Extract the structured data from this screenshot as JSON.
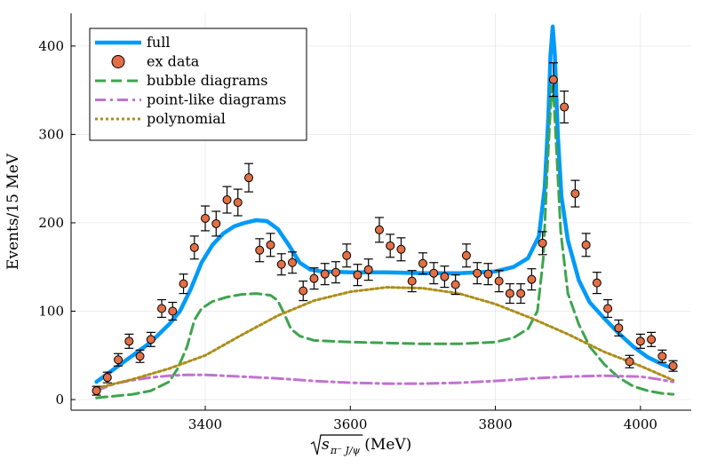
{
  "chart_data": {
    "type": "line",
    "title": "",
    "xlabel": "√s_{π⁻J/ψ}(MeV)",
    "xlabel_base": "s",
    "xlabel_sub": "π⁻ J/ψ",
    "xlabel_unit": "(MeV)",
    "ylabel": "Events/15 MeV",
    "xlim": [
      3215,
      4070
    ],
    "ylim": [
      -12,
      437
    ],
    "xticks": [
      3400,
      3600,
      3800,
      4000
    ],
    "yticks": [
      0,
      100,
      200,
      300,
      400
    ],
    "grid": true,
    "legend_position": "top-left",
    "series": [
      {
        "name": "full",
        "style": "solid",
        "color": "#009AF9",
        "x": [
          3250,
          3275,
          3300,
          3325,
          3350,
          3365,
          3380,
          3395,
          3410,
          3425,
          3440,
          3455,
          3470,
          3485,
          3500,
          3515,
          3530,
          3545,
          3560,
          3600,
          3650,
          3700,
          3750,
          3800,
          3825,
          3845,
          3860,
          3868,
          3873,
          3876,
          3879,
          3882,
          3886,
          3891,
          3900,
          3915,
          3930,
          3950,
          3970,
          3990,
          4010,
          4030,
          4045
        ],
        "y": [
          20,
          35,
          50,
          65,
          85,
          100,
          125,
          155,
          175,
          188,
          196,
          200,
          203,
          202,
          193,
          175,
          155,
          147,
          145,
          144,
          144,
          143,
          143,
          145,
          150,
          160,
          185,
          240,
          320,
          390,
          422,
          390,
          300,
          230,
          180,
          135,
          110,
          92,
          75,
          60,
          48,
          40,
          35
        ]
      },
      {
        "name": "bubble diagrams",
        "style": "dashed",
        "color": "#3DA44D",
        "x": [
          3250,
          3275,
          3300,
          3325,
          3350,
          3362,
          3375,
          3385,
          3395,
          3410,
          3430,
          3450,
          3470,
          3490,
          3500,
          3510,
          3518,
          3530,
          3550,
          3600,
          3650,
          3700,
          3750,
          3800,
          3825,
          3845,
          3858,
          3866,
          3871,
          3875,
          3878,
          3881,
          3885,
          3890,
          3900,
          3915,
          3930,
          3950,
          3970,
          3990,
          4010,
          4030,
          4045
        ],
        "y": [
          2,
          4,
          6,
          10,
          20,
          35,
          60,
          90,
          103,
          111,
          116,
          119,
          120,
          118,
          112,
          95,
          80,
          72,
          67,
          65,
          64,
          63,
          63,
          65,
          70,
          80,
          100,
          160,
          250,
          315,
          355,
          335,
          270,
          190,
          120,
          85,
          60,
          40,
          25,
          15,
          10,
          7,
          6
        ]
      },
      {
        "name": "point-like diagrams",
        "style": "dashdot",
        "color": "#C271D2",
        "x": [
          3250,
          3275,
          3300,
          3325,
          3350,
          3375,
          3400,
          3450,
          3500,
          3550,
          3600,
          3650,
          3700,
          3750,
          3800,
          3850,
          3900,
          3950,
          4000,
          4025,
          4045
        ],
        "y": [
          10,
          18,
          22,
          25,
          27,
          28,
          28,
          26,
          24,
          21,
          19,
          18,
          18,
          19,
          21,
          24,
          26,
          27,
          26,
          23,
          20
        ]
      },
      {
        "name": "polynomial",
        "style": "dotted",
        "color": "#AC8D18",
        "x": [
          3250,
          3300,
          3350,
          3400,
          3450,
          3500,
          3550,
          3600,
          3650,
          3700,
          3750,
          3800,
          3850,
          3900,
          3950,
          4000,
          4045
        ],
        "y": [
          13,
          23,
          35,
          50,
          73,
          95,
          112,
          122,
          127,
          126,
          120,
          108,
          92,
          74,
          54,
          38,
          22
        ]
      }
    ],
    "scatter": {
      "name": "ex data",
      "color": "#E26F46",
      "x": [
        3250,
        3265,
        3280,
        3295,
        3310,
        3325,
        3340,
        3355,
        3370,
        3385,
        3400,
        3415,
        3430,
        3445,
        3460,
        3475,
        3490,
        3505,
        3520,
        3535,
        3550,
        3565,
        3580,
        3595,
        3610,
        3625,
        3640,
        3655,
        3670,
        3685,
        3700,
        3715,
        3730,
        3745,
        3760,
        3775,
        3790,
        3805,
        3820,
        3835,
        3850,
        3865,
        3880,
        3895,
        3910,
        3925,
        3940,
        3955,
        3970,
        3985,
        4000,
        4015,
        4030,
        4045
      ],
      "y": [
        10,
        25,
        45,
        66,
        49,
        68,
        103,
        100,
        131,
        172,
        205,
        199,
        226,
        223,
        251,
        169,
        175,
        153,
        155,
        123,
        137,
        142,
        144,
        163,
        141,
        147,
        192,
        174,
        170,
        134,
        154,
        143,
        139,
        130,
        163,
        143,
        142,
        134,
        120,
        120,
        136,
        177,
        362,
        331,
        233,
        175,
        132,
        103,
        81,
        43,
        66,
        68,
        49,
        38
      ],
      "err": [
        5,
        6,
        7,
        8,
        7,
        8,
        10,
        10,
        11,
        13,
        14,
        14,
        15,
        15,
        16,
        13,
        13,
        12,
        12,
        11,
        12,
        12,
        12,
        13,
        12,
        12,
        14,
        13,
        13,
        12,
        12,
        12,
        12,
        11,
        13,
        12,
        12,
        12,
        11,
        11,
        12,
        13,
        19,
        18,
        15,
        13,
        12,
        10,
        9,
        7,
        8,
        8,
        7,
        6
      ]
    }
  }
}
